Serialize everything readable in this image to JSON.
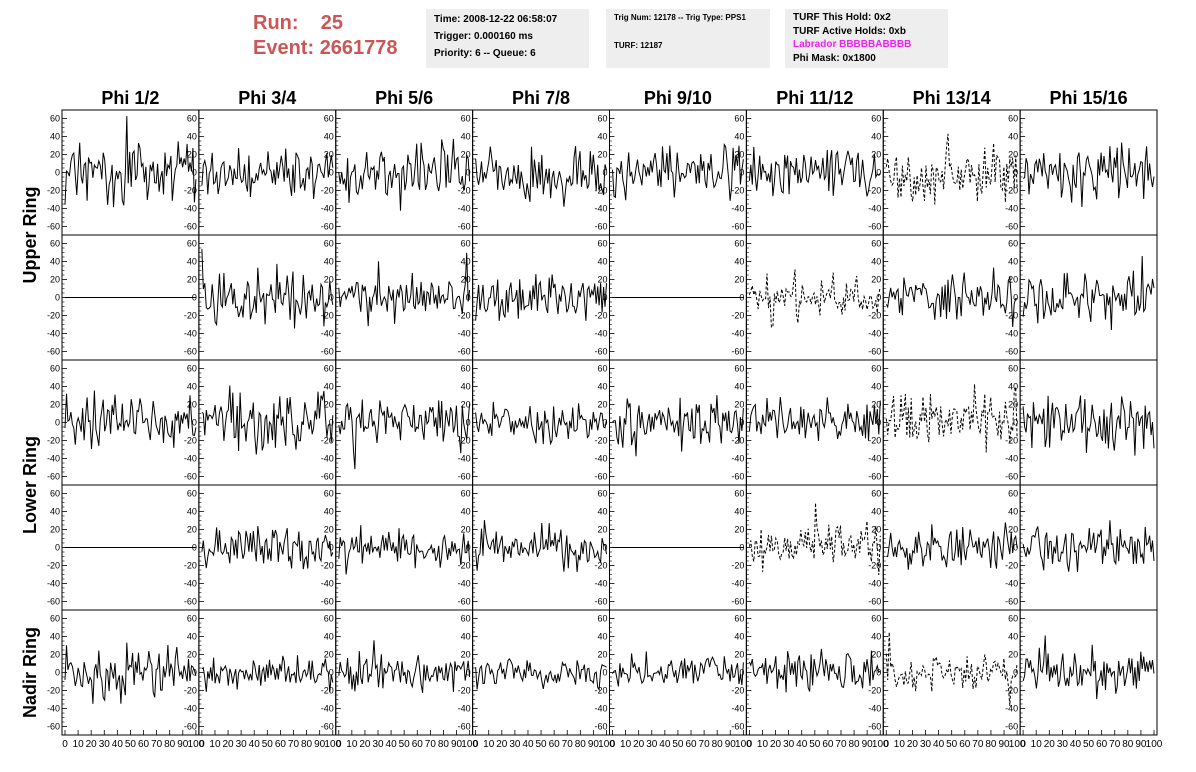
{
  "header": {
    "run_label": "Run:",
    "run_value": "25",
    "event_label": "Event:",
    "event_value": "2661778",
    "time": "Time: 2008-12-22 06:58:07",
    "trigger": "Trigger: 0.000160 ms",
    "priority": "Priority: 6 -- Queue: 6",
    "trig_num": "Trig Num: 12178 -- Trig Type: PPS1",
    "turf": "TURF: 12187",
    "turf_hold": "TURF This Hold: 0x2",
    "turf_active": "TURF Active Holds: 0xb",
    "labrador": "Labrador BBBBBABBBB",
    "phi_mask": "Phi Mask: 0x1800",
    "colors": {
      "title": "#cc5555",
      "labrador": "#ee22ee",
      "box": "#eeeeee",
      "trace": "#000000"
    }
  },
  "chart_data": {
    "type": "line",
    "columns": [
      "Phi 1/2",
      "Phi 3/4",
      "Phi 5/6",
      "Phi 7/8",
      "Phi 9/10",
      "Phi 11/12",
      "Phi 13/14",
      "Phi 15/16"
    ],
    "ring_labels": [
      "Upper Ring",
      "Lower Ring",
      "Nadir Ring"
    ],
    "rows_per_ring": [
      2,
      2,
      1
    ],
    "xlim": [
      0,
      100
    ],
    "ylim": [
      -65,
      65
    ],
    "xticks": [
      "0",
      "10",
      "20",
      "30",
      "40",
      "50",
      "60",
      "70",
      "80",
      "90",
      "100"
    ],
    "yticks": [
      "-60",
      "-40",
      "-20",
      "0",
      "20",
      "40",
      "60"
    ],
    "samples_per_trace": 90,
    "panels": [
      {
        "row": 0,
        "col": 0,
        "style": "solid",
        "amplitude": 16
      },
      {
        "row": 0,
        "col": 1,
        "style": "solid",
        "amplitude": 13
      },
      {
        "row": 0,
        "col": 2,
        "style": "solid",
        "amplitude": 14
      },
      {
        "row": 0,
        "col": 3,
        "style": "solid",
        "amplitude": 14
      },
      {
        "row": 0,
        "col": 4,
        "style": "solid",
        "amplitude": 14
      },
      {
        "row": 0,
        "col": 5,
        "style": "solid",
        "amplitude": 14
      },
      {
        "row": 0,
        "col": 6,
        "style": "dashed",
        "amplitude": 14
      },
      {
        "row": 0,
        "col": 7,
        "style": "solid",
        "amplitude": 15
      },
      {
        "row": 1,
        "col": 0,
        "style": "flat",
        "amplitude": 0
      },
      {
        "row": 1,
        "col": 1,
        "style": "solid",
        "amplitude": 15
      },
      {
        "row": 1,
        "col": 2,
        "style": "solid",
        "amplitude": 12
      },
      {
        "row": 1,
        "col": 3,
        "style": "solid",
        "amplitude": 13
      },
      {
        "row": 1,
        "col": 4,
        "style": "flat",
        "amplitude": 0
      },
      {
        "row": 1,
        "col": 5,
        "style": "dashed",
        "amplitude": 12
      },
      {
        "row": 1,
        "col": 6,
        "style": "solid",
        "amplitude": 12
      },
      {
        "row": 1,
        "col": 7,
        "style": "solid",
        "amplitude": 14
      },
      {
        "row": 2,
        "col": 0,
        "style": "solid",
        "amplitude": 15
      },
      {
        "row": 2,
        "col": 1,
        "style": "solid",
        "amplitude": 16
      },
      {
        "row": 2,
        "col": 2,
        "style": "solid",
        "amplitude": 15
      },
      {
        "row": 2,
        "col": 3,
        "style": "solid",
        "amplitude": 12
      },
      {
        "row": 2,
        "col": 4,
        "style": "solid",
        "amplitude": 14
      },
      {
        "row": 2,
        "col": 5,
        "style": "solid",
        "amplitude": 12
      },
      {
        "row": 2,
        "col": 6,
        "style": "dashed",
        "amplitude": 16
      },
      {
        "row": 2,
        "col": 7,
        "style": "solid",
        "amplitude": 13
      },
      {
        "row": 3,
        "col": 0,
        "style": "flat",
        "amplitude": 0
      },
      {
        "row": 3,
        "col": 1,
        "style": "solid",
        "amplitude": 12
      },
      {
        "row": 3,
        "col": 2,
        "style": "solid",
        "amplitude": 10
      },
      {
        "row": 3,
        "col": 3,
        "style": "solid",
        "amplitude": 11
      },
      {
        "row": 3,
        "col": 4,
        "style": "flat",
        "amplitude": 0
      },
      {
        "row": 3,
        "col": 5,
        "style": "dashed",
        "amplitude": 12
      },
      {
        "row": 3,
        "col": 6,
        "style": "solid",
        "amplitude": 12
      },
      {
        "row": 3,
        "col": 7,
        "style": "solid",
        "amplitude": 13
      },
      {
        "row": 4,
        "col": 0,
        "style": "solid",
        "amplitude": 14
      },
      {
        "row": 4,
        "col": 1,
        "style": "solid",
        "amplitude": 8
      },
      {
        "row": 4,
        "col": 2,
        "style": "solid",
        "amplitude": 10
      },
      {
        "row": 4,
        "col": 3,
        "style": "solid",
        "amplitude": 8
      },
      {
        "row": 4,
        "col": 4,
        "style": "solid",
        "amplitude": 9
      },
      {
        "row": 4,
        "col": 5,
        "style": "solid",
        "amplitude": 12
      },
      {
        "row": 4,
        "col": 6,
        "style": "dashed",
        "amplitude": 10
      },
      {
        "row": 4,
        "col": 7,
        "style": "solid",
        "amplitude": 12
      }
    ]
  }
}
